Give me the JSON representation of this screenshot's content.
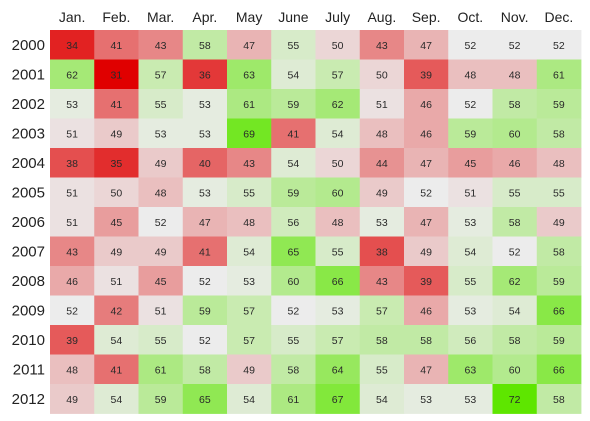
{
  "chart_data": {
    "type": "heatmap",
    "title": "",
    "xlabel": "",
    "ylabel": "",
    "x": [
      "Jan.",
      "Feb.",
      "Mar.",
      "Apr.",
      "May",
      "June",
      "July",
      "Aug.",
      "Sep.",
      "Oct.",
      "Nov.",
      "Dec."
    ],
    "y": [
      "2000",
      "2001",
      "2002",
      "2003",
      "2004",
      "2005",
      "2006",
      "2007",
      "2008",
      "2009",
      "2010",
      "2011",
      "2012"
    ],
    "values": [
      [
        34,
        41,
        43,
        58,
        47,
        55,
        50,
        43,
        47,
        52,
        52,
        52
      ],
      [
        62,
        31,
        57,
        36,
        63,
        54,
        57,
        50,
        39,
        48,
        48,
        61
      ],
      [
        53,
        41,
        55,
        53,
        61,
        59,
        62,
        51,
        46,
        52,
        58,
        59
      ],
      [
        51,
        49,
        53,
        53,
        69,
        41,
        54,
        48,
        46,
        59,
        60,
        58
      ],
      [
        38,
        35,
        49,
        40,
        43,
        54,
        50,
        44,
        47,
        45,
        46,
        48
      ],
      [
        51,
        50,
        48,
        53,
        55,
        59,
        60,
        49,
        52,
        51,
        55,
        55
      ],
      [
        51,
        45,
        52,
        47,
        48,
        56,
        48,
        53,
        47,
        53,
        58,
        49
      ],
      [
        43,
        49,
        49,
        41,
        54,
        65,
        55,
        38,
        49,
        54,
        52,
        58
      ],
      [
        46,
        51,
        45,
        52,
        53,
        60,
        66,
        43,
        39,
        55,
        62,
        59
      ],
      [
        52,
        42,
        51,
        59,
        57,
        52,
        53,
        57,
        46,
        53,
        54,
        66
      ],
      [
        39,
        54,
        55,
        52,
        57,
        55,
        57,
        58,
        58,
        56,
        58,
        59
      ],
      [
        48,
        41,
        61,
        58,
        49,
        58,
        64,
        55,
        47,
        63,
        60,
        66
      ],
      [
        49,
        54,
        59,
        65,
        54,
        61,
        67,
        54,
        53,
        53,
        72,
        58
      ]
    ],
    "color_scale": {
      "low": "#e00000",
      "mid": "#ececec",
      "high": "#5ee600",
      "domain": [
        31,
        52,
        72
      ]
    },
    "legend": "none",
    "grid": false
  }
}
